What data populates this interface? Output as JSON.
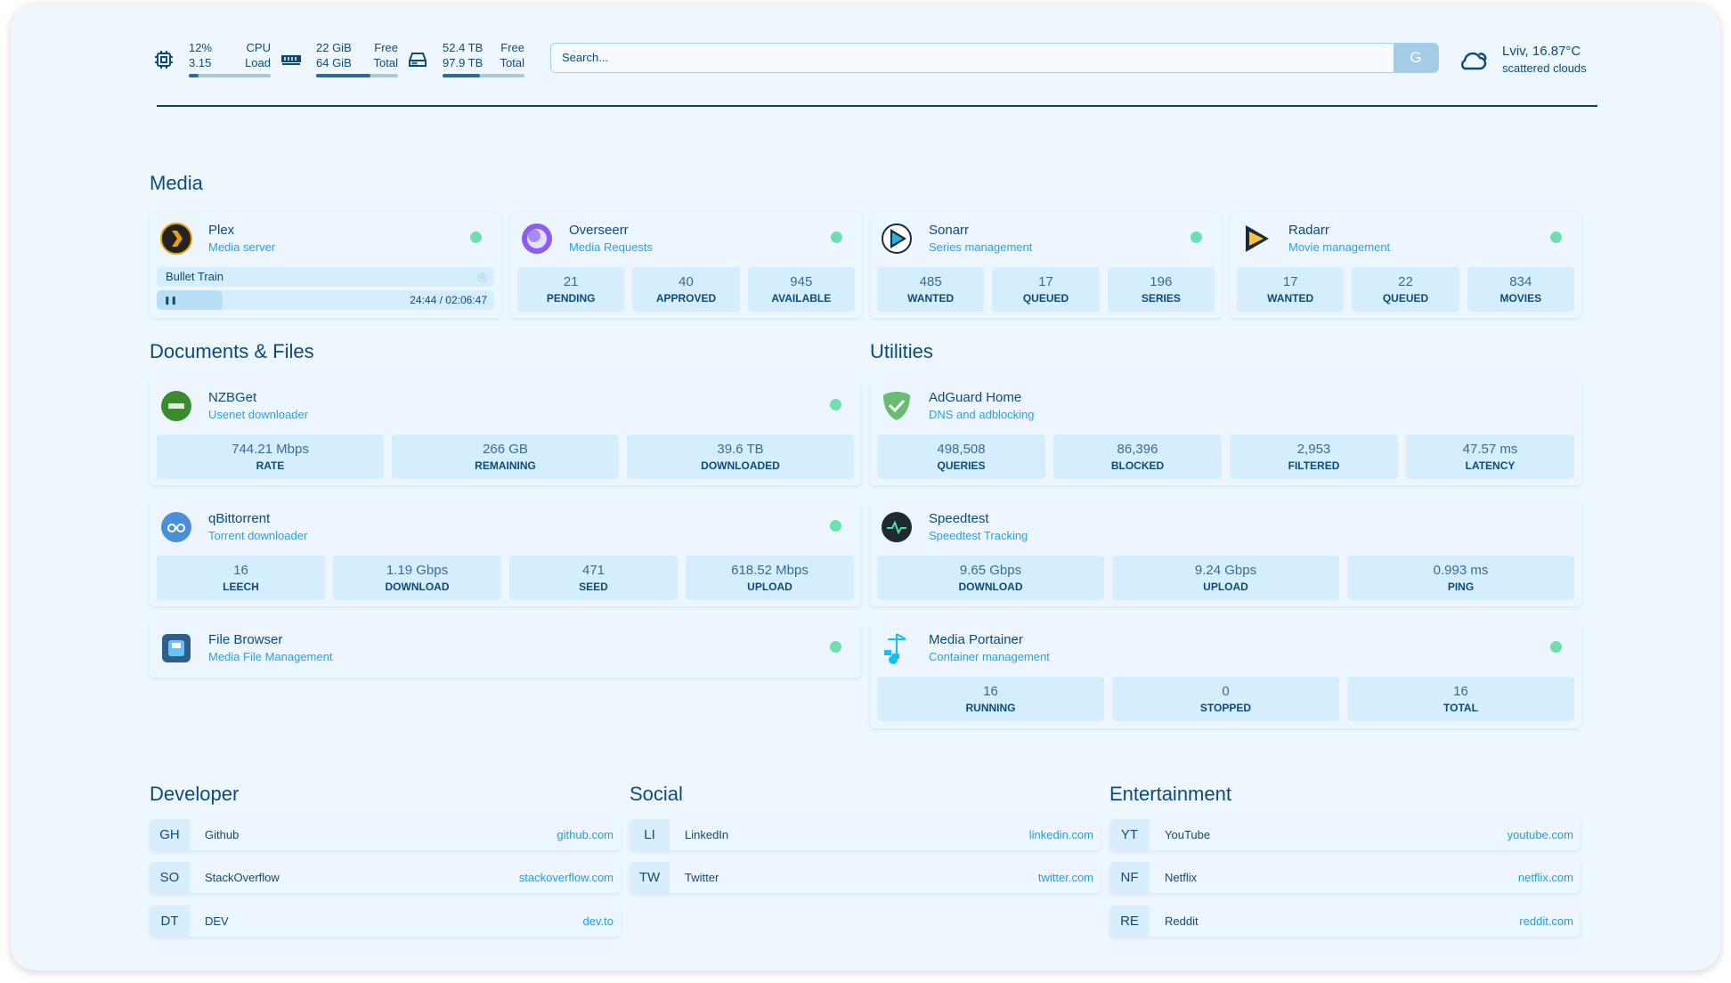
{
  "header": {
    "cpu": {
      "icon": "cpu-icon",
      "value1": "12%",
      "value2": "3.15",
      "label1": "CPU",
      "label2": "Load",
      "usage_percent": 12
    },
    "memory": {
      "icon": "memory-icon",
      "value1": "22 GiB",
      "value2": "64 GiB",
      "label1": "Free",
      "label2": "Total",
      "usage_percent": 66
    },
    "disk": {
      "icon": "disk-icon",
      "value1": "52.4 TB",
      "value2": "97.9 TB",
      "label1": "Free",
      "label2": "Total",
      "usage_percent": 46
    },
    "search": {
      "placeholder": "Search...",
      "button": "G"
    },
    "weather": {
      "icon": "cloud-sun-icon",
      "location_temp": "Lviv, 16.87°C",
      "condition": "scattered clouds"
    }
  },
  "groups": {
    "media": "Media",
    "documents": "Documents & Files",
    "utilities": "Utilities",
    "developer": "Developer",
    "social": "Social",
    "entertainment": "Entertainment"
  },
  "colors": {
    "status_online": "#6ee0ae",
    "accent": "#23a3e6",
    "text": "#0d4a7c"
  },
  "services": [
    {
      "name": "Plex",
      "desc": "Media server",
      "icon": "plex-icon",
      "status": "online",
      "now_playing": {
        "title": "Bullet Train",
        "time": "24:44 / 02:06:47",
        "progress_percent": 19.5
      }
    },
    {
      "name": "Overseerr",
      "desc": "Media Requests",
      "icon": "overseerr-icon",
      "status": "online",
      "stats": [
        {
          "v": "21",
          "k": "PENDING"
        },
        {
          "v": "40",
          "k": "APPROVED"
        },
        {
          "v": "945",
          "k": "AVAILABLE"
        }
      ]
    },
    {
      "name": "Sonarr",
      "desc": "Series management",
      "icon": "sonarr-icon",
      "status": "online",
      "stats": [
        {
          "v": "485",
          "k": "WANTED"
        },
        {
          "v": "17",
          "k": "QUEUED"
        },
        {
          "v": "196",
          "k": "SERIES"
        }
      ]
    },
    {
      "name": "Radarr",
      "desc": "Movie management",
      "icon": "radarr-icon",
      "status": "online",
      "stats": [
        {
          "v": "17",
          "k": "WANTED"
        },
        {
          "v": "22",
          "k": "QUEUED"
        },
        {
          "v": "834",
          "k": "MOVIES"
        }
      ]
    },
    {
      "name": "NZBGet",
      "desc": "Usenet downloader",
      "icon": "nzbget-icon",
      "status": "online",
      "stats": [
        {
          "v": "744.21 Mbps",
          "k": "RATE"
        },
        {
          "v": "266 GB",
          "k": "REMAINING"
        },
        {
          "v": "39.6 TB",
          "k": "DOWNLOADED"
        }
      ]
    },
    {
      "name": "qBittorrent",
      "desc": "Torrent downloader",
      "icon": "qbittorrent-icon",
      "status": "online",
      "stats": [
        {
          "v": "16",
          "k": "LEECH"
        },
        {
          "v": "1.19 Gbps",
          "k": "DOWNLOAD"
        },
        {
          "v": "471",
          "k": "SEED"
        },
        {
          "v": "618.52 Mbps",
          "k": "UPLOAD"
        }
      ]
    },
    {
      "name": "File Browser",
      "desc": "Media File Management",
      "icon": "filebrowser-icon",
      "status": "online"
    },
    {
      "name": "AdGuard Home",
      "desc": "DNS and adblocking",
      "icon": "adguard-icon",
      "stats": [
        {
          "v": "498,508",
          "k": "QUERIES"
        },
        {
          "v": "86,396",
          "k": "BLOCKED"
        },
        {
          "v": "2,953",
          "k": "FILTERED"
        },
        {
          "v": "47.57 ms",
          "k": "LATENCY"
        }
      ]
    },
    {
      "name": "Speedtest",
      "desc": "Speedtest Tracking",
      "icon": "speedtest-icon",
      "stats": [
        {
          "v": "9.65 Gbps",
          "k": "DOWNLOAD"
        },
        {
          "v": "9.24 Gbps",
          "k": "UPLOAD"
        },
        {
          "v": "0.993 ms",
          "k": "PING"
        }
      ]
    },
    {
      "name": "Media Portainer",
      "desc": "Container management",
      "icon": "portainer-icon",
      "status": "online",
      "stats": [
        {
          "v": "16",
          "k": "RUNNING"
        },
        {
          "v": "0",
          "k": "STOPPED"
        },
        {
          "v": "16",
          "k": "TOTAL"
        }
      ]
    }
  ],
  "bookmarks": {
    "developer": [
      {
        "abbr": "GH",
        "name": "Github",
        "url": "github.com"
      },
      {
        "abbr": "SO",
        "name": "StackOverflow",
        "url": "stackoverflow.com"
      },
      {
        "abbr": "DT",
        "name": "DEV",
        "url": "dev.to"
      }
    ],
    "social": [
      {
        "abbr": "LI",
        "name": "LinkedIn",
        "url": "linkedin.com"
      },
      {
        "abbr": "TW",
        "name": "Twitter",
        "url": "twitter.com"
      }
    ],
    "entertainment": [
      {
        "abbr": "YT",
        "name": "YouTube",
        "url": "youtube.com"
      },
      {
        "abbr": "NF",
        "name": "Netflix",
        "url": "netflix.com"
      },
      {
        "abbr": "RE",
        "name": "Reddit",
        "url": "reddit.com"
      }
    ]
  }
}
